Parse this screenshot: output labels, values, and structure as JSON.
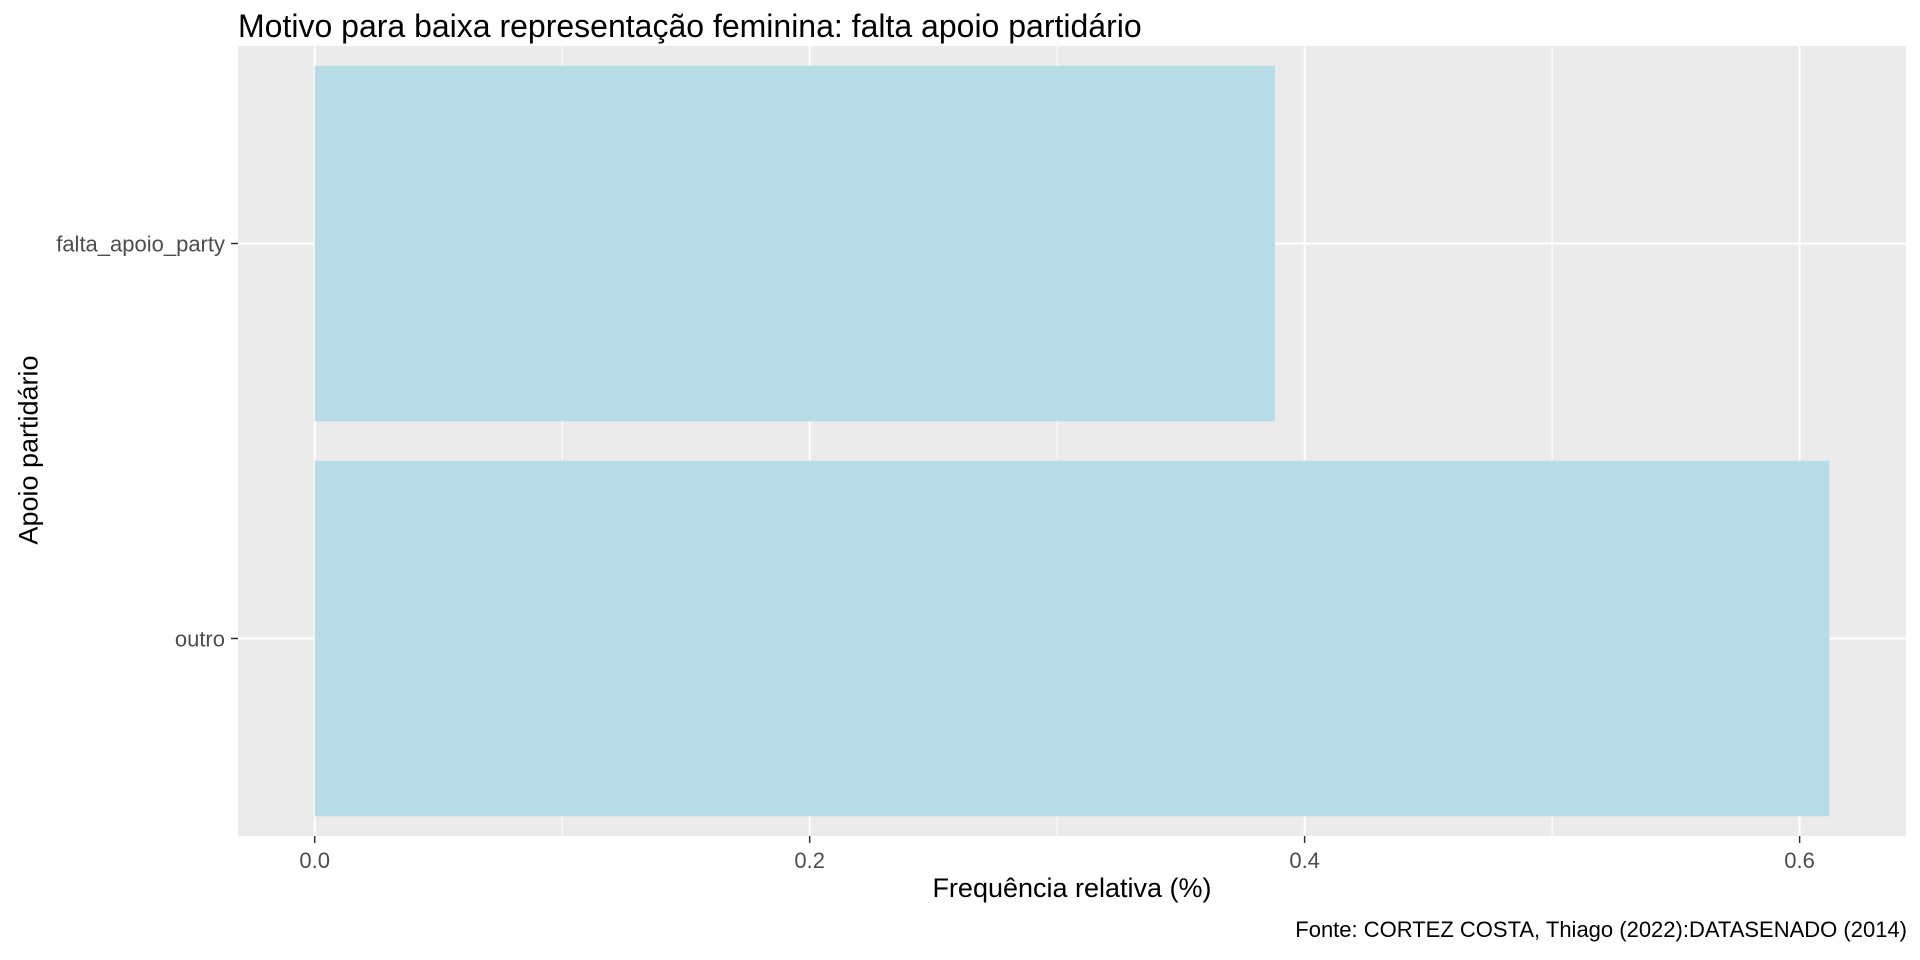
{
  "chart_data": {
    "type": "bar",
    "orientation": "horizontal",
    "title": "Motivo para baixa representação feminina: falta apoio partidário",
    "xlabel": "Frequência relativa (%)",
    "ylabel": "Apoio partidário",
    "caption": "Fonte: CORTEZ COSTA, Thiago (2022):DATASENADO (2014)",
    "categories": [
      "falta_apoio_party",
      "outro"
    ],
    "values": [
      0.388,
      0.612
    ],
    "xlim": [
      -0.031,
      0.643
    ],
    "xticks": [
      0.0,
      0.2,
      0.4,
      0.6
    ],
    "xtick_labels": [
      "0.0",
      "0.2",
      "0.4",
      "0.6"
    ],
    "grid": true,
    "colors": {
      "panel": "#EBEBEB",
      "grid": "#FFFFFF",
      "bar": "#B8DCE5",
      "tick_text": "#4D4D4D",
      "tick_mark": "#333333"
    }
  }
}
